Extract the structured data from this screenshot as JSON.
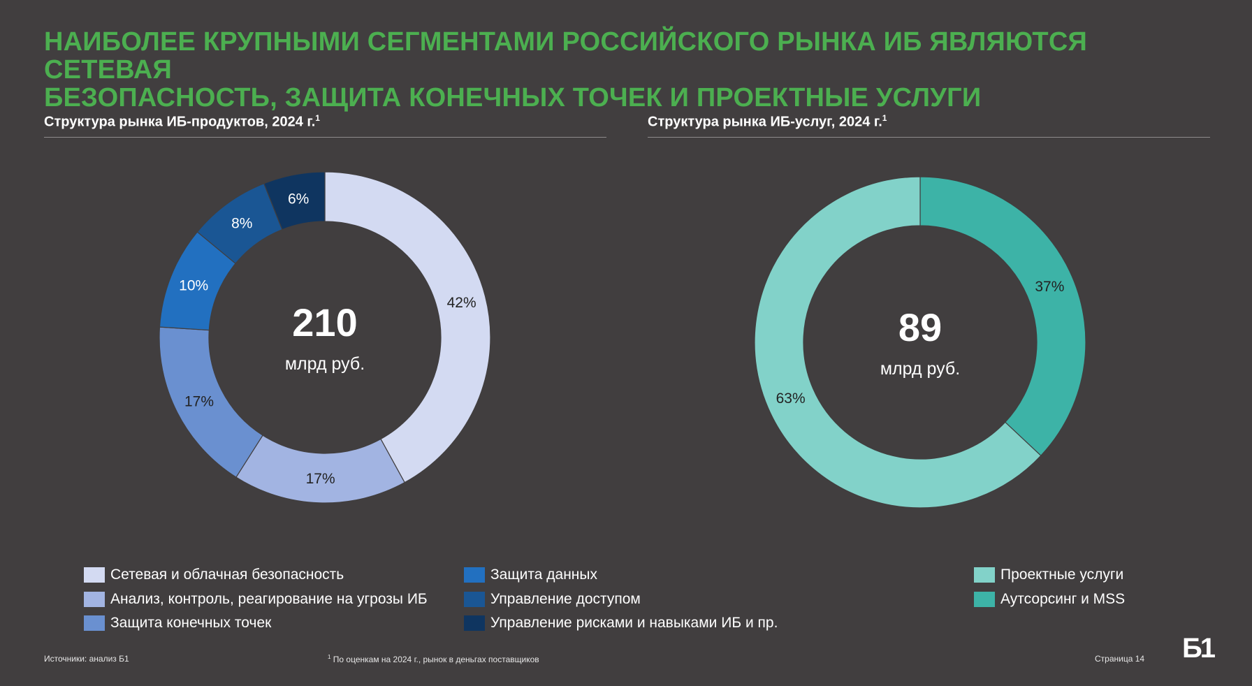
{
  "title": {
    "line1": "НАИБОЛЕЕ КРУПНЫМИ СЕГМЕНТАМИ РОССИЙСКОГО РЫНКА ИБ ЯВЛЯЮТСЯ СЕТЕВАЯ",
    "line2": "БЕЗОПАСНОСТЬ, ЗАЩИТА КОНЕЧНЫХ ТОЧЕК И ПРОЕКТНЫЕ УСЛУГИ"
  },
  "chart_data": [
    {
      "type": "pie",
      "variant": "donut",
      "title": "Структура рынка ИБ-продуктов, 2024 г.",
      "title_footnote": "1",
      "center_value": "210",
      "center_unit": "млрд руб.",
      "categories": [
        "Сетевая и облачная безопасность",
        "Анализ, контроль, реагирование на угрозы ИБ",
        "Защита конечных точек",
        "Защита данных",
        "Управление доступом",
        "Управление рисками и навыками ИБ и пр."
      ],
      "values": [
        42,
        17,
        17,
        10,
        8,
        6
      ],
      "labels": [
        "42%",
        "17%",
        "17%",
        "10%",
        "8%",
        "6%"
      ],
      "colors": [
        "#d3daf2",
        "#a2b4e2",
        "#6a90d0",
        "#2270c0",
        "#1a5694",
        "#0f3560"
      ],
      "label_colors": [
        "#222222",
        "#222222",
        "#222222",
        "#ffffff",
        "#ffffff",
        "#ffffff"
      ],
      "legend": "bottom"
    },
    {
      "type": "pie",
      "variant": "donut",
      "title": "Структура рынка ИБ-услуг, 2024 г.",
      "title_footnote": "1",
      "center_value": "89",
      "center_unit": "млрд руб.",
      "categories": [
        "Аутсорсинг и MSS",
        "Проектные услуги"
      ],
      "values": [
        37,
        63
      ],
      "labels": [
        "37%",
        "63%"
      ],
      "colors": [
        "#3db3a7",
        "#82d2c9"
      ],
      "label_colors": [
        "#222222",
        "#222222"
      ],
      "legend": "bottom-right"
    }
  ],
  "legend_services_order": [
    "Проектные услуги",
    "Аутсорсинг и MSS"
  ],
  "footer": {
    "sources": "Источники: анализ Б1",
    "note_sup": "1",
    "note": " По оценкам на 2024 г., рынок в деньгах поставщиков",
    "page": "Страница 14"
  },
  "logo": "Б1"
}
